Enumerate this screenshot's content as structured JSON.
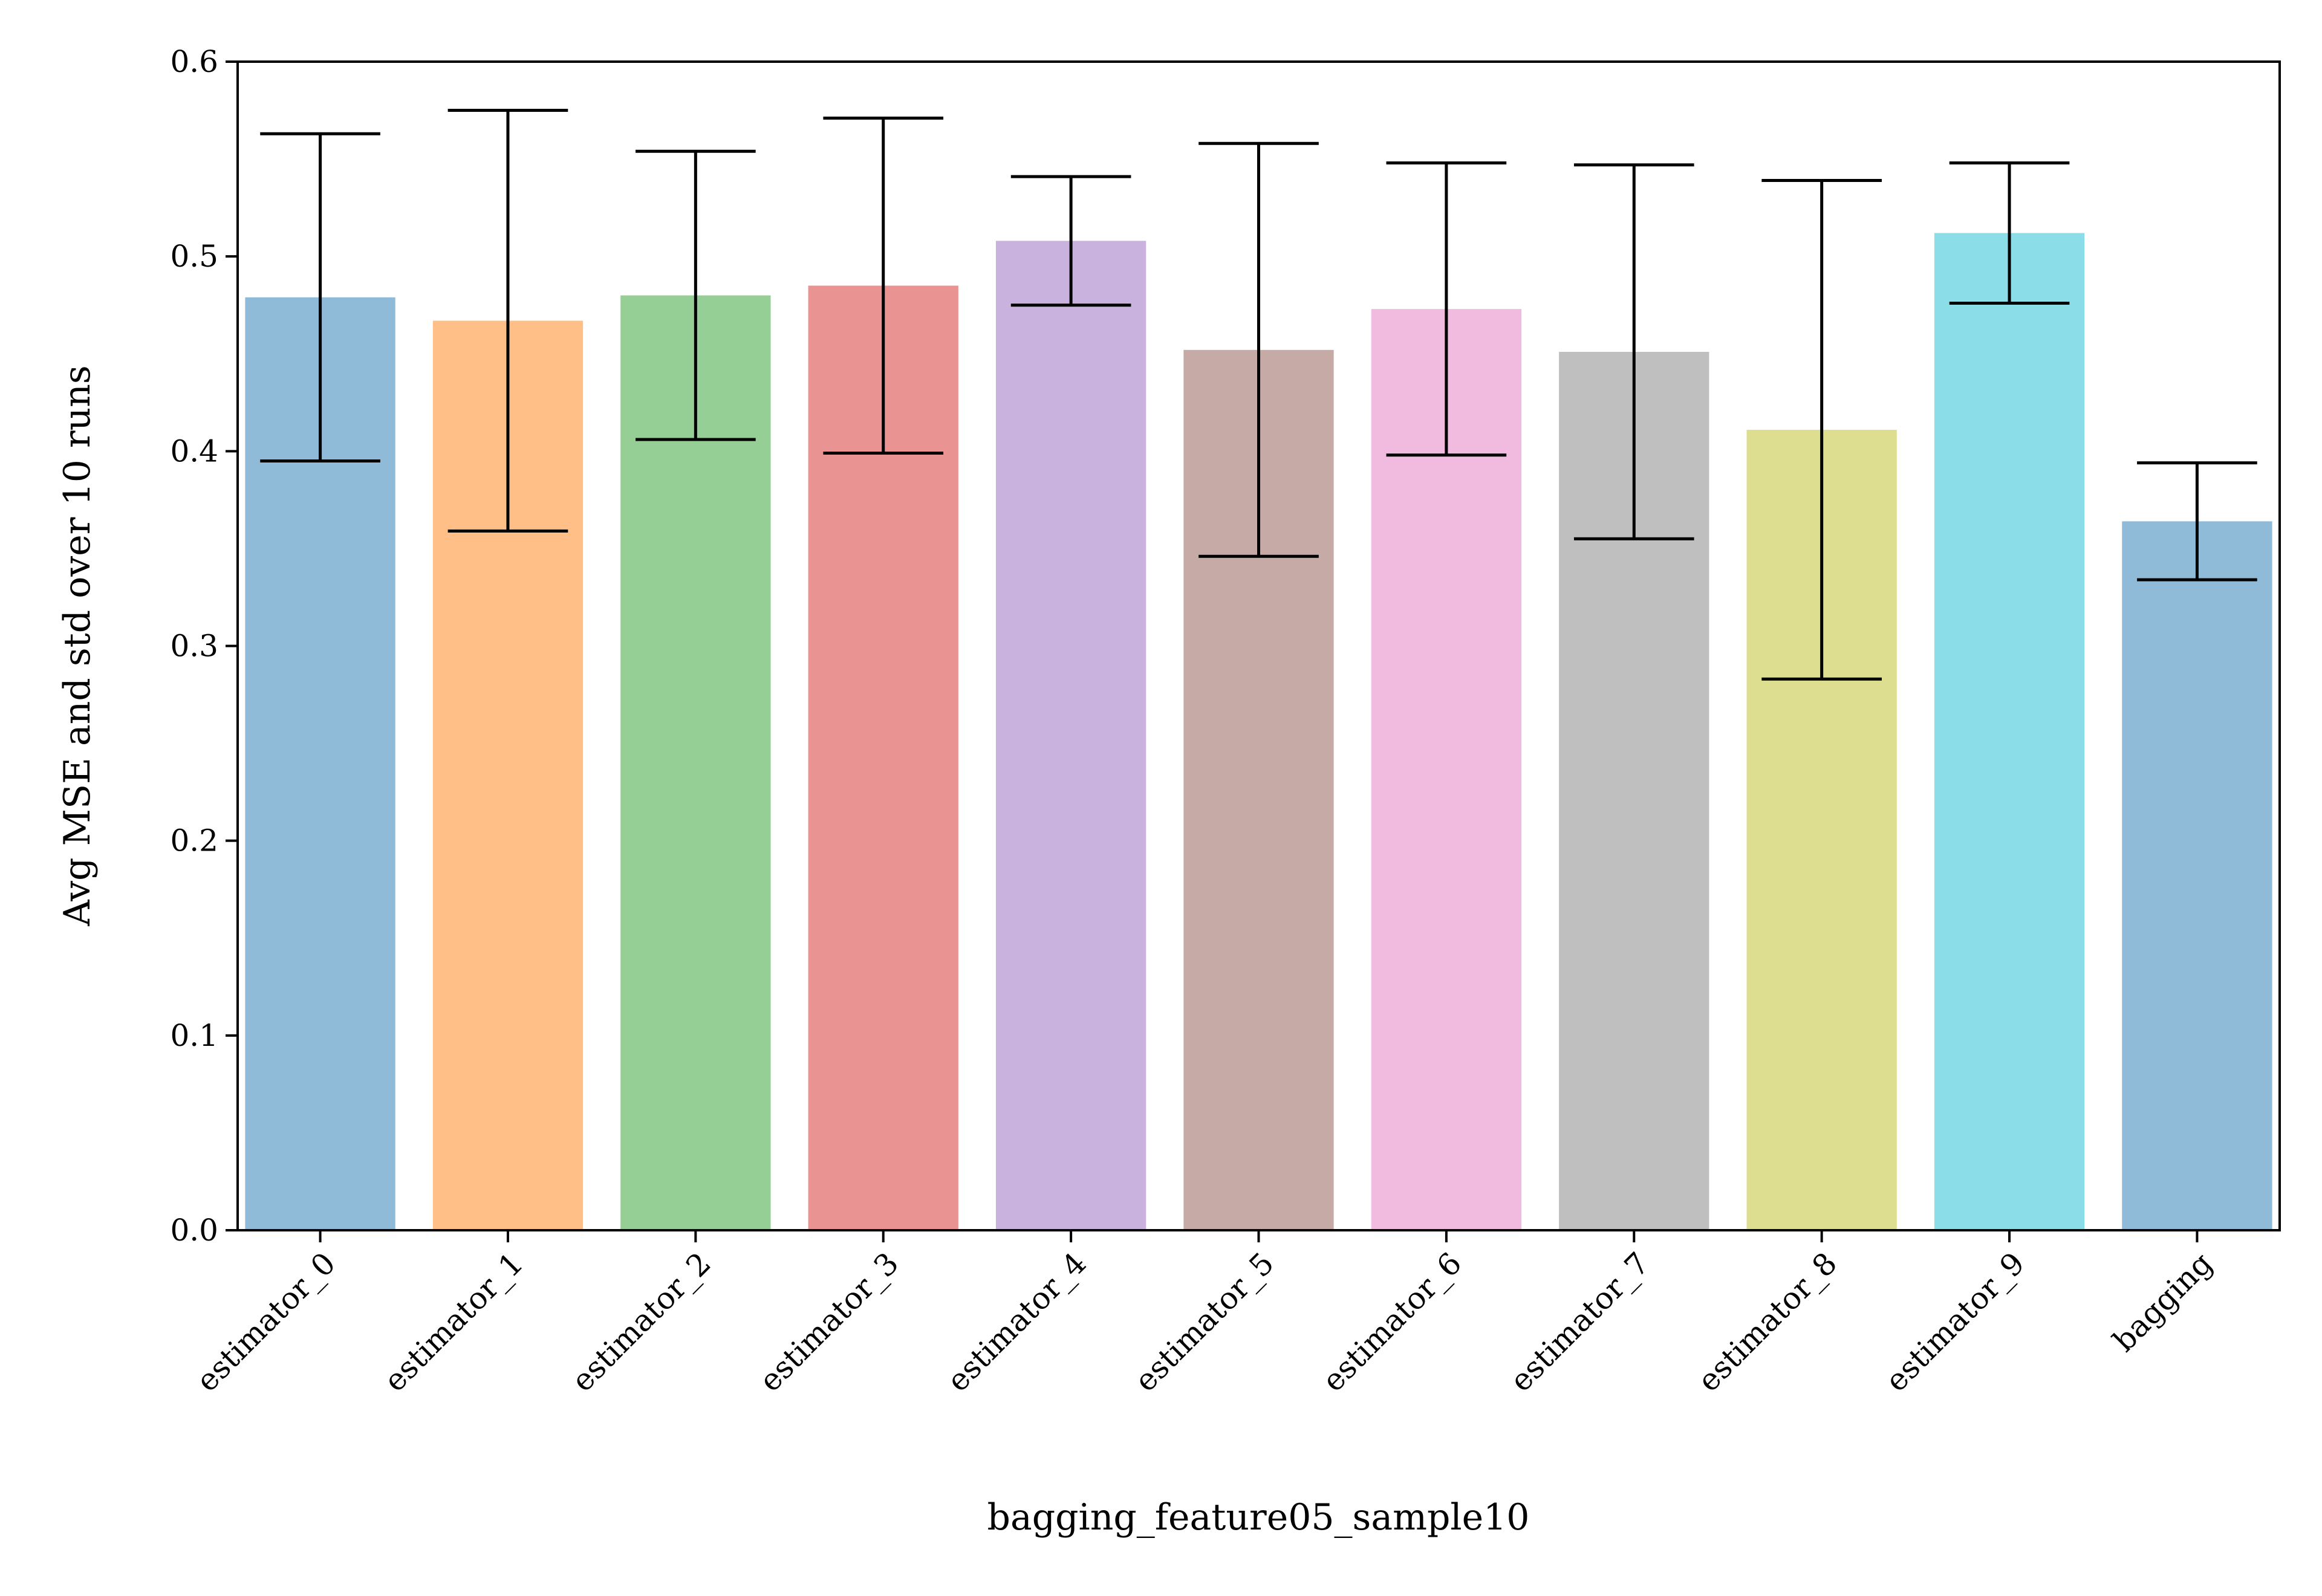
{
  "chart_data": {
    "type": "bar",
    "title": "",
    "xlabel": "bagging_feature05_sample10",
    "ylabel": "Avg MSE and std over 10 runs",
    "categories": [
      "estimator_0",
      "estimator_1",
      "estimator_2",
      "estimator_3",
      "estimator_4",
      "estimator_5",
      "estimator_6",
      "estimator_7",
      "estimator_8",
      "estimator_9",
      "bagging"
    ],
    "values": [
      0.479,
      0.467,
      0.48,
      0.485,
      0.508,
      0.452,
      0.473,
      0.451,
      0.411,
      0.512,
      0.364
    ],
    "errors": [
      0.084,
      0.108,
      0.074,
      0.086,
      0.033,
      0.106,
      0.075,
      0.096,
      0.128,
      0.036,
      0.03
    ],
    "colors": [
      "#1f77b4",
      "#ff7f0e",
      "#2ca02c",
      "#d62728",
      "#9467bd",
      "#8c564b",
      "#e377c2",
      "#7f7f7f",
      "#bcbd22",
      "#17becf",
      "#1f77b4"
    ],
    "bar_alpha": 0.5,
    "ylim": [
      0,
      0.6
    ],
    "yticks": [
      "0.0",
      "0.1",
      "0.2",
      "0.3",
      "0.4",
      "0.5",
      "0.6"
    ],
    "xtick_rotation": 45,
    "grid": false,
    "legend": "none"
  }
}
